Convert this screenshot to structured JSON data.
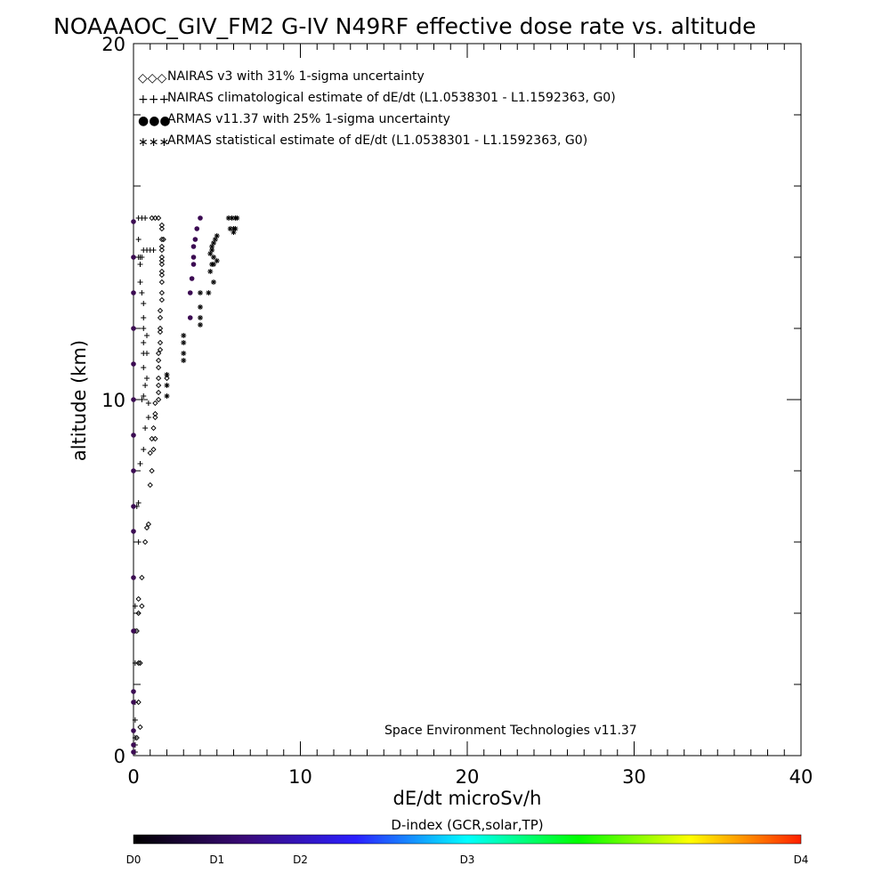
{
  "chart_data": {
    "type": "scatter",
    "title": "NOAAAOC_GIV_FM2 G-IV   N49RF  effective dose rate vs. altitude",
    "xlabel": "dE/dt microSv/h",
    "ylabel": "altitude (km)",
    "xlim": [
      0,
      40
    ],
    "ylim": [
      0,
      20
    ],
    "x_ticks": [
      0,
      10,
      20,
      30,
      40
    ],
    "y_ticks": [
      0,
      10,
      20
    ],
    "x_tick_labels": [
      "0",
      "10",
      "20",
      "30",
      "40"
    ],
    "y_tick_labels": [
      "0",
      "10",
      "20"
    ],
    "legend_position": "top-left",
    "legend": [
      {
        "symbol": "◇◇◇",
        "label": "NAIRAS v3 with 31% 1-sigma uncertainty"
      },
      {
        "symbol": "+++",
        "label": "NAIRAS climatological estimate of dE/dt (L1.0538301 - L1.1592363, G0)"
      },
      {
        "symbol": "●●●",
        "label": "ARMAS v11.37 with 25% 1-sigma uncertainty",
        "color": "#1f3fd0"
      },
      {
        "symbol": "∗∗∗",
        "label": "ARMAS statistical estimate of dE/dt (L1.0538301 - L1.1592363, G0)"
      }
    ],
    "footer": "Space Environment Technologies v11.37",
    "colorbar": {
      "label": "D-index (GCR,solar,TP)",
      "tick_labels": [
        "D0",
        "D1",
        "D2",
        "D3",
        "D4"
      ],
      "tick_positions": [
        0,
        0.125,
        0.25,
        0.5,
        1.0
      ],
      "colors": [
        "#000000",
        "#3a0a78",
        "#2b1fff",
        "#00ffff",
        "#00ff00",
        "#ffff00",
        "#ff2000"
      ]
    },
    "armas_point_color": "#3b0a52",
    "series": [
      {
        "name": "NAIRAS v3 with 31% 1-sigma uncertainty",
        "marker": "diamond",
        "points": [
          [
            0.4,
            0.8
          ],
          [
            0.2,
            0.5
          ],
          [
            0.3,
            1.5
          ],
          [
            0.3,
            2.6
          ],
          [
            0.4,
            2.6
          ],
          [
            0.2,
            3.5
          ],
          [
            0.3,
            4.0
          ],
          [
            0.5,
            4.2
          ],
          [
            0.3,
            4.4
          ],
          [
            0.5,
            5.0
          ],
          [
            0.7,
            6.0
          ],
          [
            0.8,
            6.4
          ],
          [
            0.9,
            6.5
          ],
          [
            1.0,
            7.6
          ],
          [
            1.1,
            8.0
          ],
          [
            1.0,
            8.5
          ],
          [
            1.2,
            8.6
          ],
          [
            1.1,
            8.9
          ],
          [
            1.3,
            8.9
          ],
          [
            1.2,
            9.2
          ],
          [
            1.3,
            9.5
          ],
          [
            1.3,
            9.6
          ],
          [
            1.3,
            9.9
          ],
          [
            1.5,
            10.0
          ],
          [
            1.5,
            10.2
          ],
          [
            1.5,
            10.4
          ],
          [
            1.5,
            10.6
          ],
          [
            2.0,
            10.6
          ],
          [
            1.5,
            10.9
          ],
          [
            1.5,
            11.1
          ],
          [
            1.5,
            11.3
          ],
          [
            1.6,
            11.4
          ],
          [
            1.6,
            11.6
          ],
          [
            1.6,
            11.9
          ],
          [
            1.6,
            12.0
          ],
          [
            1.6,
            12.3
          ],
          [
            1.6,
            12.5
          ],
          [
            1.7,
            12.8
          ],
          [
            1.7,
            13.0
          ],
          [
            1.7,
            13.3
          ],
          [
            1.7,
            13.5
          ],
          [
            1.7,
            13.6
          ],
          [
            1.7,
            13.8
          ],
          [
            1.7,
            13.9
          ],
          [
            1.7,
            14.0
          ],
          [
            1.7,
            14.2
          ],
          [
            1.7,
            14.3
          ],
          [
            1.7,
            14.5
          ],
          [
            1.8,
            14.5
          ],
          [
            1.7,
            14.8
          ],
          [
            1.7,
            14.9
          ],
          [
            1.5,
            15.1
          ],
          [
            1.3,
            15.1
          ],
          [
            1.1,
            15.1
          ]
        ]
      },
      {
        "name": "NAIRAS climatological estimate of dE/dt (L1.0538301 - L1.1592363, G0)",
        "marker": "plus",
        "points": [
          [
            0.1,
            0.1
          ],
          [
            0.1,
            0.3
          ],
          [
            0.1,
            0.5
          ],
          [
            0.1,
            1.0
          ],
          [
            0.1,
            1.5
          ],
          [
            0.1,
            2.6
          ],
          [
            0.1,
            3.5
          ],
          [
            0.1,
            4.2
          ],
          [
            0.3,
            6.0
          ],
          [
            0.2,
            7.0
          ],
          [
            0.3,
            7.1
          ],
          [
            0.4,
            8.2
          ],
          [
            0.6,
            8.6
          ],
          [
            0.7,
            9.2
          ],
          [
            0.9,
            9.5
          ],
          [
            0.9,
            9.9
          ],
          [
            0.5,
            10.0
          ],
          [
            0.6,
            10.1
          ],
          [
            0.7,
            10.4
          ],
          [
            0.8,
            10.6
          ],
          [
            0.6,
            10.9
          ],
          [
            0.6,
            11.3
          ],
          [
            0.8,
            11.3
          ],
          [
            0.6,
            11.6
          ],
          [
            0.8,
            11.8
          ],
          [
            0.6,
            12.0
          ],
          [
            0.6,
            12.3
          ],
          [
            0.6,
            12.7
          ],
          [
            0.5,
            13.0
          ],
          [
            0.4,
            13.3
          ],
          [
            0.4,
            13.8
          ],
          [
            0.3,
            14.0
          ],
          [
            0.4,
            14.0
          ],
          [
            0.5,
            14.0
          ],
          [
            0.6,
            14.2
          ],
          [
            0.8,
            14.2
          ],
          [
            1.0,
            14.2
          ],
          [
            1.2,
            14.2
          ],
          [
            0.3,
            14.5
          ],
          [
            0.3,
            15.1
          ],
          [
            0.5,
            15.1
          ],
          [
            0.7,
            15.1
          ]
        ]
      },
      {
        "name": "ARMAS v11.37 with 25% 1-sigma uncertainty",
        "marker": "dot",
        "points": [
          [
            0.0,
            0.1
          ],
          [
            0.0,
            0.3
          ],
          [
            0.0,
            0.7
          ],
          [
            0.0,
            1.5
          ],
          [
            0.0,
            1.8
          ],
          [
            0.0,
            3.5
          ],
          [
            0.0,
            5.0
          ],
          [
            0.0,
            6.3
          ],
          [
            0.0,
            7.0
          ],
          [
            0.0,
            8.0
          ],
          [
            0.0,
            9.0
          ],
          [
            0.0,
            10.0
          ],
          [
            0.0,
            11.0
          ],
          [
            0.0,
            12.0
          ],
          [
            0.0,
            13.0
          ],
          [
            0.0,
            14.0
          ],
          [
            0.0,
            15.0
          ],
          [
            3.4,
            12.3
          ],
          [
            3.4,
            13.0
          ],
          [
            3.5,
            13.4
          ],
          [
            3.6,
            13.8
          ],
          [
            3.6,
            14.0
          ],
          [
            3.6,
            14.3
          ],
          [
            3.7,
            14.5
          ],
          [
            3.8,
            14.8
          ],
          [
            4.0,
            15.1
          ]
        ]
      },
      {
        "name": "ARMAS statistical estimate of dE/dt (L1.0538301 - L1.1592363, G0)",
        "marker": "asterisk",
        "points": [
          [
            2.0,
            10.1
          ],
          [
            2.0,
            10.4
          ],
          [
            2.0,
            10.7
          ],
          [
            3.0,
            11.1
          ],
          [
            3.0,
            11.3
          ],
          [
            3.0,
            11.6
          ],
          [
            3.0,
            11.8
          ],
          [
            4.0,
            12.1
          ],
          [
            4.0,
            12.3
          ],
          [
            4.0,
            12.6
          ],
          [
            4.0,
            13.0
          ],
          [
            4.5,
            13.0
          ],
          [
            4.8,
            13.3
          ],
          [
            4.6,
            13.6
          ],
          [
            4.7,
            13.8
          ],
          [
            4.8,
            14.0
          ],
          [
            4.6,
            14.1
          ],
          [
            4.7,
            14.2
          ],
          [
            4.7,
            14.3
          ],
          [
            4.8,
            14.4
          ],
          [
            4.9,
            14.5
          ],
          [
            5.0,
            14.6
          ],
          [
            4.8,
            13.8
          ],
          [
            5.0,
            13.9
          ],
          [
            5.8,
            14.8
          ],
          [
            6.0,
            14.8
          ],
          [
            6.1,
            14.8
          ],
          [
            5.7,
            15.1
          ],
          [
            5.9,
            15.1
          ],
          [
            6.1,
            15.1
          ],
          [
            6.2,
            15.1
          ],
          [
            6.0,
            14.7
          ]
        ]
      }
    ]
  }
}
